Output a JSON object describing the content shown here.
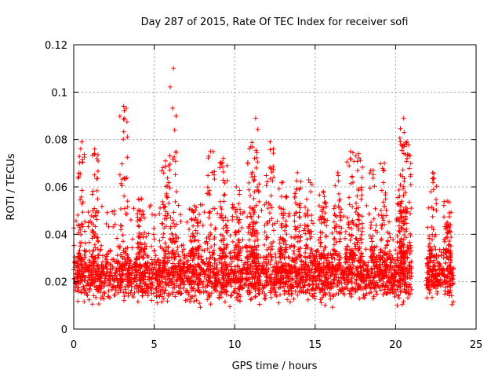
{
  "chart_data": {
    "type": "scatter",
    "title": "Day 287 of 2015, Rate Of TEC Index for receiver sofi",
    "xlabel": "GPS time / hours",
    "ylabel": "ROTI / TECUs",
    "xlim": [
      0,
      25
    ],
    "ylim": [
      0,
      0.12
    ],
    "x_ticks": [
      0,
      5,
      10,
      15,
      20,
      25
    ],
    "x_tick_labels": [
      "0",
      "5",
      "10",
      "15",
      "20",
      "25"
    ],
    "y_ticks": [
      0,
      0.02,
      0.04,
      0.06,
      0.08,
      0.1,
      0.12
    ],
    "y_tick_labels": [
      "0",
      "0.02",
      "0.04",
      "0.06",
      "0.08",
      "0.1",
      "0.12"
    ],
    "grid": true,
    "marker": "plus",
    "color": "#ff0000",
    "band": {
      "x_start": 0.0,
      "x_end": 23.6,
      "gap": [
        21.0,
        21.9
      ],
      "typical_low": 0.008,
      "typical_high": 0.03
    },
    "peaks": [
      {
        "x": 0.5,
        "y": 0.079
      },
      {
        "x": 1.3,
        "y": 0.076
      },
      {
        "x": 3.1,
        "y": 0.094
      },
      {
        "x": 4.2,
        "y": 0.055
      },
      {
        "x": 5.7,
        "y": 0.071
      },
      {
        "x": 6.2,
        "y": 0.11
      },
      {
        "x": 7.5,
        "y": 0.052
      },
      {
        "x": 8.5,
        "y": 0.075
      },
      {
        "x": 9.3,
        "y": 0.072
      },
      {
        "x": 10.1,
        "y": 0.06
      },
      {
        "x": 11.0,
        "y": 0.077
      },
      {
        "x": 11.3,
        "y": 0.089
      },
      {
        "x": 12.2,
        "y": 0.079
      },
      {
        "x": 13.0,
        "y": 0.062
      },
      {
        "x": 13.9,
        "y": 0.066
      },
      {
        "x": 14.6,
        "y": 0.063
      },
      {
        "x": 15.5,
        "y": 0.058
      },
      {
        "x": 16.4,
        "y": 0.066
      },
      {
        "x": 17.2,
        "y": 0.075
      },
      {
        "x": 17.7,
        "y": 0.074
      },
      {
        "x": 18.6,
        "y": 0.067
      },
      {
        "x": 19.3,
        "y": 0.07
      },
      {
        "x": 20.3,
        "y": 0.065
      },
      {
        "x": 20.5,
        "y": 0.089
      },
      {
        "x": 20.7,
        "y": 0.079
      },
      {
        "x": 22.3,
        "y": 0.066
      },
      {
        "x": 23.2,
        "y": 0.054
      }
    ]
  }
}
